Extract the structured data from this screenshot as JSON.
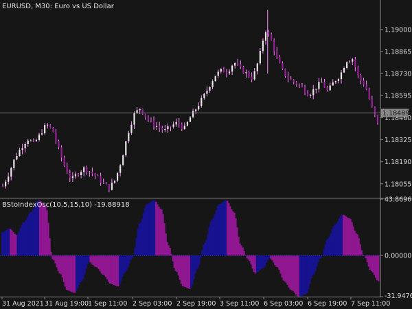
{
  "window": {
    "title": "EURUSD, M30:  Euro vs US Dollar",
    "indicator_title": "BStoIndexOsc(10,5,15,10) -19.88918"
  },
  "colors": {
    "background": "#161616",
    "axis": "#8c8c8c",
    "bull_body": "#e6e6e6",
    "bear_body": "#9b1e9b",
    "wick": "#ff8cff",
    "osc_up": "#17128f",
    "osc_down": "#8f178f",
    "zero_line": "#1e3fff",
    "price_line": "#7a7a7a"
  },
  "price_axis": {
    "ticks": [
      "1.19000",
      "1.18865",
      "1.18730",
      "1.18595",
      "1.18460",
      "1.18325",
      "1.18190",
      "1.18055"
    ],
    "current_price": "1.18489"
  },
  "osc_axis": {
    "ticks": [
      "43.86960",
      "0.00000",
      "-31.94764"
    ]
  },
  "time_axis": {
    "labels": [
      "31 Aug 2021",
      "31 Aug 19:00",
      "1 Sep 11:00",
      "2 Sep 03:00",
      "2 Sep 19:00",
      "3 Sep 11:00",
      "6 Sep 03:00",
      "6 Sep 19:00",
      "7 Sep 11:00"
    ]
  },
  "chart_data": [
    {
      "type": "candlestick",
      "title": "EURUSD, M30:  Euro vs US Dollar",
      "ylim": [
        1.1797,
        1.1918
      ],
      "current_price": 1.18489,
      "close_path": [
        1.1804,
        1.1812,
        1.1822,
        1.1828,
        1.1833,
        1.183,
        1.1836,
        1.1842,
        1.1838,
        1.1826,
        1.1815,
        1.1808,
        1.1812,
        1.1815,
        1.1813,
        1.181,
        1.1806,
        1.1803,
        1.1808,
        1.182,
        1.1836,
        1.1848,
        1.1852,
        1.1846,
        1.1842,
        1.184,
        1.1838,
        1.1841,
        1.1843,
        1.1839,
        1.1846,
        1.1852,
        1.1858,
        1.1865,
        1.1872,
        1.1875,
        1.1874,
        1.188,
        1.1876,
        1.1873,
        1.187,
        1.1882,
        1.19,
        1.1893,
        1.1881,
        1.1873,
        1.1869,
        1.1867,
        1.1864,
        1.186,
        1.1864,
        1.1868,
        1.1862,
        1.1868,
        1.1872,
        1.1881,
        1.1882,
        1.187,
        1.1866,
        1.1853,
        1.1842
      ]
    },
    {
      "type": "area",
      "title": "BStoIndexOsc(10,5,15,10) -19.88918",
      "ylim": [
        -31.94764,
        43.8696
      ],
      "values": [
        18,
        21,
        16,
        26,
        34,
        43,
        39,
        -3,
        -14,
        -27,
        -29,
        -20,
        -5,
        -9,
        -15,
        -22,
        -24,
        -13,
        -2,
        25,
        40,
        43,
        36,
        8,
        -12,
        -24,
        -26,
        -10,
        10,
        28,
        40,
        43,
        34,
        8,
        -3,
        -14,
        -10,
        -2,
        -9,
        -20,
        -27,
        -32,
        -30,
        -15,
        -2,
        13,
        24,
        32,
        29,
        17,
        0,
        -12,
        -20
      ]
    }
  ]
}
